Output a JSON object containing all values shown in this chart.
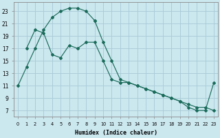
{
  "xlabel": "Humidex (Indice chaleur)",
  "background_color": "#cce8ef",
  "grid_color": "#aacdd8",
  "line_color": "#1a6b5a",
  "xlim": [
    -0.5,
    23.5
  ],
  "ylim": [
    6.0,
    24.5
  ],
  "xticks": [
    0,
    1,
    2,
    3,
    4,
    5,
    6,
    7,
    8,
    9,
    10,
    11,
    12,
    13,
    14,
    15,
    16,
    17,
    18,
    19,
    20,
    21,
    22,
    23
  ],
  "yticks": [
    7,
    9,
    11,
    13,
    15,
    17,
    19,
    21,
    23
  ],
  "line1_x": [
    0,
    1,
    2,
    3,
    4,
    5,
    6,
    7,
    8,
    9
  ],
  "line1_y": [
    11,
    14,
    17,
    20,
    22,
    23,
    23.5,
    23.5,
    23,
    21.5
  ],
  "line2_x": [
    1,
    2,
    3,
    4,
    5,
    6,
    7,
    8,
    9,
    10,
    11,
    12,
    13,
    14,
    15,
    16,
    17,
    18,
    19,
    20,
    21,
    22,
    23
  ],
  "line2_y": [
    17,
    20,
    19.5,
    16,
    15.5,
    17.5,
    17,
    18,
    18,
    15,
    12,
    11.5,
    11.5,
    11,
    10.5,
    10,
    9.5,
    9,
    8.5,
    8,
    7.5,
    7.5,
    7
  ],
  "line3_x": [
    9,
    10,
    11,
    12,
    13,
    14,
    15,
    16,
    17,
    18,
    19,
    20,
    21,
    22,
    23
  ],
  "line3_y": [
    21.5,
    18,
    15,
    12,
    11.5,
    11,
    10.5,
    10,
    9.5,
    9,
    8.5,
    7.5,
    7,
    7,
    11.5
  ]
}
